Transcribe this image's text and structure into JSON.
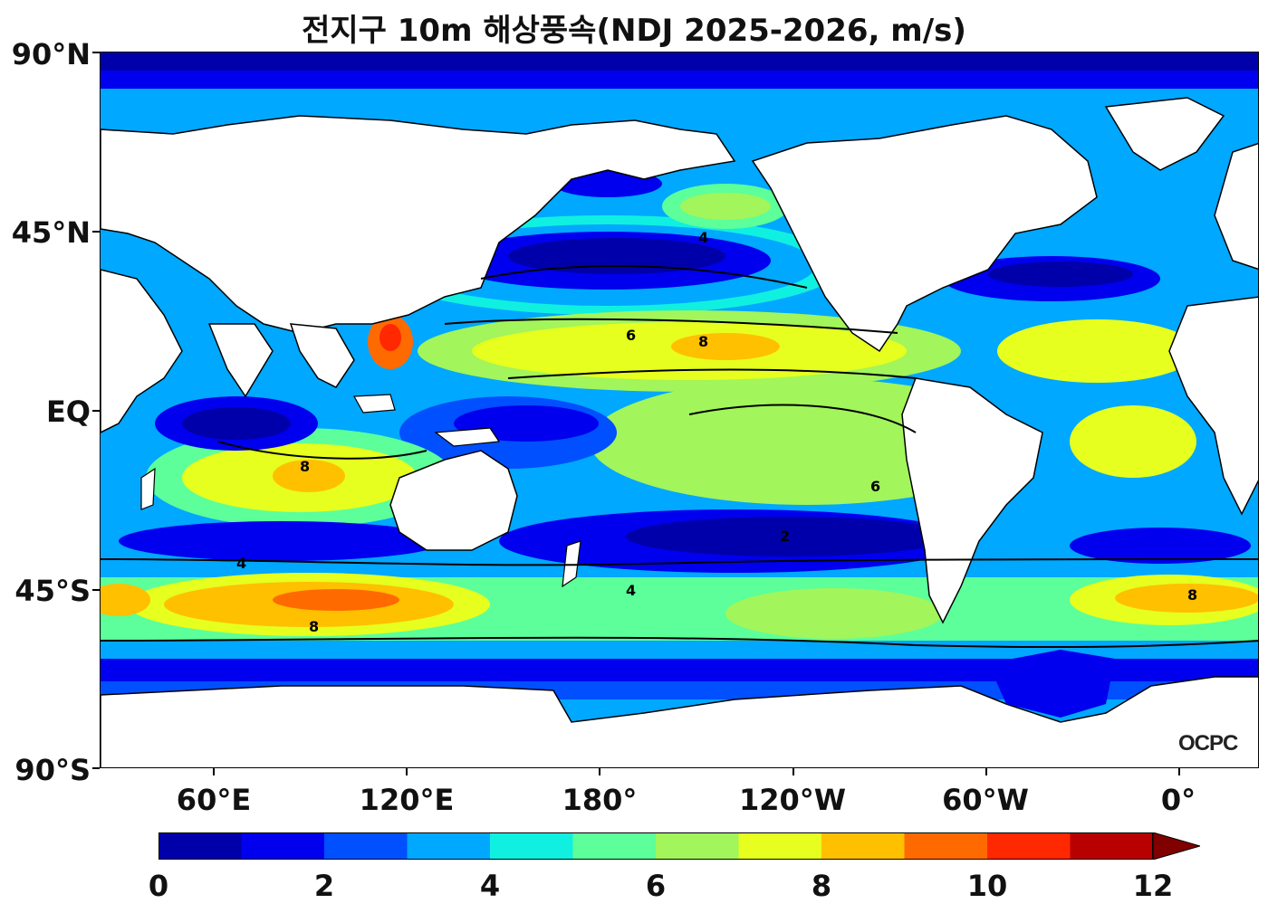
{
  "title": "전지구 10m 해상풍속(NDJ 2025-2026, m/s)",
  "lat_labels": [
    "90°N",
    "45°N",
    "EQ",
    "45°S",
    "90°S"
  ],
  "lon_labels": [
    "60°E",
    "120°E",
    "180°",
    "120°W",
    "60°W",
    "0°"
  ],
  "colorbar": {
    "tick_labels": [
      "0",
      "2",
      "4",
      "6",
      "8",
      "10",
      "12"
    ],
    "colors": [
      "#0000aa",
      "#0000ee",
      "#0050ff",
      "#00a8ff",
      "#10f0e0",
      "#5cff9a",
      "#a2f55a",
      "#e6ff1e",
      "#ffc000",
      "#ff6a00",
      "#ff2800",
      "#b80000"
    ],
    "extend_color": "#800000"
  },
  "logo": "OCPC"
}
